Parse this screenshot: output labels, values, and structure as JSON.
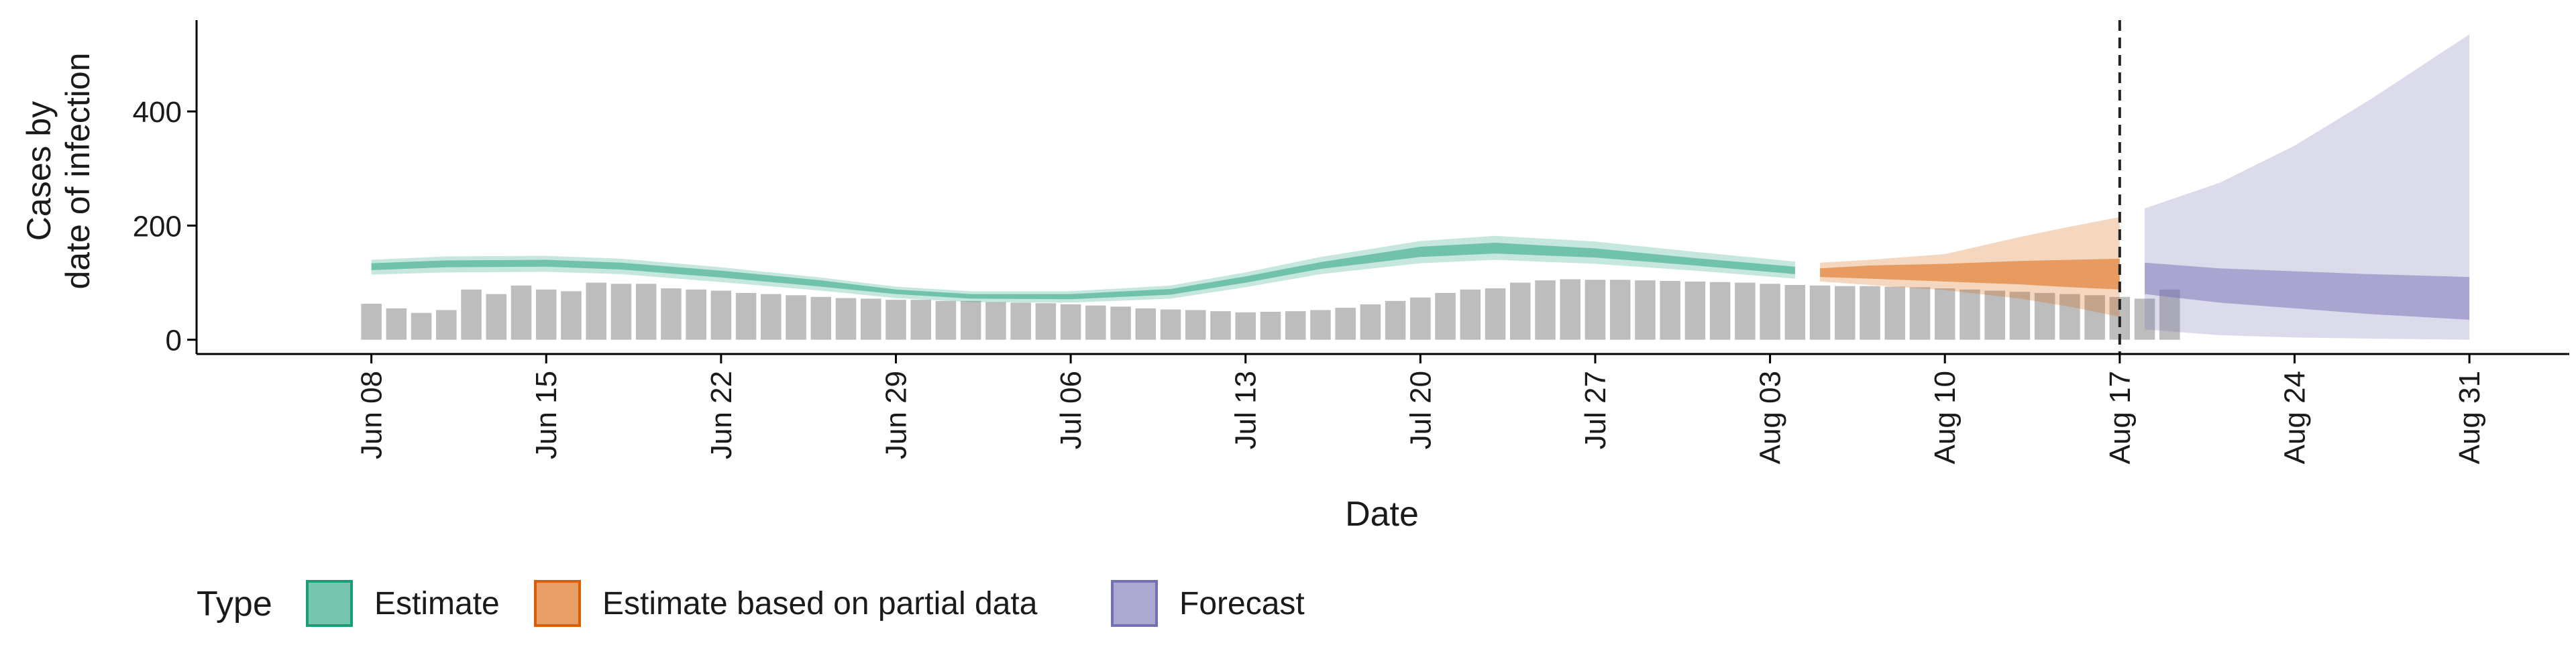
{
  "chart_data": {
    "type": "bar",
    "xlabel": "Date",
    "ylabel_lines": [
      "Cases by",
      "date of infection"
    ],
    "ylim": [
      -25,
      560
    ],
    "yticks": [
      0,
      200,
      400
    ],
    "x_tick_labels": [
      {
        "date": "2020-06-08",
        "label": "Jun 08"
      },
      {
        "date": "2020-06-15",
        "label": "Jun 15"
      },
      {
        "date": "2020-06-22",
        "label": "Jun 22"
      },
      {
        "date": "2020-06-29",
        "label": "Jun 29"
      },
      {
        "date": "2020-07-06",
        "label": "Jul 06"
      },
      {
        "date": "2020-07-13",
        "label": "Jul 13"
      },
      {
        "date": "2020-07-20",
        "label": "Jul 20"
      },
      {
        "date": "2020-07-27",
        "label": "Jul 27"
      },
      {
        "date": "2020-08-03",
        "label": "Aug 03"
      },
      {
        "date": "2020-08-10",
        "label": "Aug 10"
      },
      {
        "date": "2020-08-17",
        "label": "Aug 17"
      },
      {
        "date": "2020-08-24",
        "label": "Aug 24"
      },
      {
        "date": "2020-08-31",
        "label": "Aug 31"
      }
    ],
    "xlim": [
      "2020-06-01",
      "2020-09-04"
    ],
    "cutoff_date": "2020-08-17",
    "reported_cases": {
      "start_date": "2020-06-08",
      "values": [
        63,
        55,
        47,
        52,
        88,
        80,
        95,
        88,
        85,
        100,
        98,
        98,
        90,
        88,
        86,
        82,
        80,
        78,
        75,
        73,
        72,
        70,
        70,
        68,
        68,
        66,
        65,
        64,
        62,
        60,
        58,
        55,
        53,
        52,
        50,
        48,
        49,
        50,
        52,
        56,
        62,
        68,
        74,
        82,
        88,
        90,
        100,
        104,
        106,
        105,
        105,
        104,
        103,
        102,
        101,
        100,
        98,
        96,
        95,
        94,
        94,
        93,
        92,
        90,
        88,
        86,
        84,
        82,
        80,
        78,
        75,
        72,
        88
      ]
    },
    "series": [
      {
        "name": "Estimate",
        "color": "#1B9E77",
        "dates": [
          "2020-06-08",
          "2020-06-11",
          "2020-06-15",
          "2020-06-18",
          "2020-06-22",
          "2020-06-26",
          "2020-06-29",
          "2020-07-02",
          "2020-07-06",
          "2020-07-10",
          "2020-07-13",
          "2020-07-16",
          "2020-07-20",
          "2020-07-23",
          "2020-07-27",
          "2020-07-31",
          "2020-08-04"
        ],
        "median": [
          128,
          133,
          134,
          129,
          115,
          98,
          84,
          76,
          75,
          84,
          105,
          130,
          154,
          160,
          152,
          137,
          122
        ],
        "lower90": [
          114,
          118,
          119,
          115,
          101,
          86,
          73,
          66,
          65,
          72,
          92,
          115,
          134,
          140,
          133,
          121,
          107
        ],
        "upper90": [
          140,
          146,
          147,
          142,
          127,
          109,
          93,
          85,
          85,
          95,
          118,
          145,
          173,
          182,
          172,
          154,
          137
        ],
        "lower50": [
          122,
          127,
          128,
          123,
          109,
          93,
          80,
          72,
          71,
          79,
          100,
          124,
          145,
          151,
          144,
          130,
          115
        ],
        "upper50": [
          134,
          139,
          140,
          135,
          121,
          104,
          88,
          80,
          80,
          89,
          111,
          136,
          163,
          170,
          160,
          143,
          128
        ]
      },
      {
        "name": "Estimate based on partial data",
        "color": "#D95F02",
        "dates": [
          "2020-08-05",
          "2020-08-07",
          "2020-08-10",
          "2020-08-13",
          "2020-08-15",
          "2020-08-17"
        ],
        "median": [
          117,
          118,
          118,
          120,
          121,
          122
        ],
        "lower90": [
          102,
          96,
          87,
          72,
          58,
          40
        ],
        "upper90": [
          135,
          140,
          150,
          180,
          198,
          215
        ],
        "lower50": [
          110,
          107,
          102,
          97,
          92,
          88
        ],
        "upper50": [
          125,
          130,
          133,
          138,
          140,
          142
        ]
      },
      {
        "name": "Forecast",
        "color": "#7570B3",
        "dates": [
          "2020-08-18",
          "2020-08-21",
          "2020-08-24",
          "2020-08-27",
          "2020-08-31"
        ],
        "median": [
          110,
          100,
          92,
          85,
          75
        ],
        "lower90": [
          18,
          8,
          4,
          2,
          0
        ],
        "upper90": [
          230,
          275,
          340,
          420,
          535
        ],
        "lower50": [
          80,
          65,
          55,
          45,
          35
        ],
        "upper50": [
          135,
          125,
          120,
          115,
          110
        ]
      }
    ],
    "legend": {
      "title": "Type",
      "position": "bottom",
      "items": [
        {
          "label": "Estimate",
          "color": "#1B9E77"
        },
        {
          "label": "Estimate based on partial data",
          "color": "#D95F02"
        },
        {
          "label": "Forecast",
          "color": "#7570B3"
        }
      ]
    }
  }
}
